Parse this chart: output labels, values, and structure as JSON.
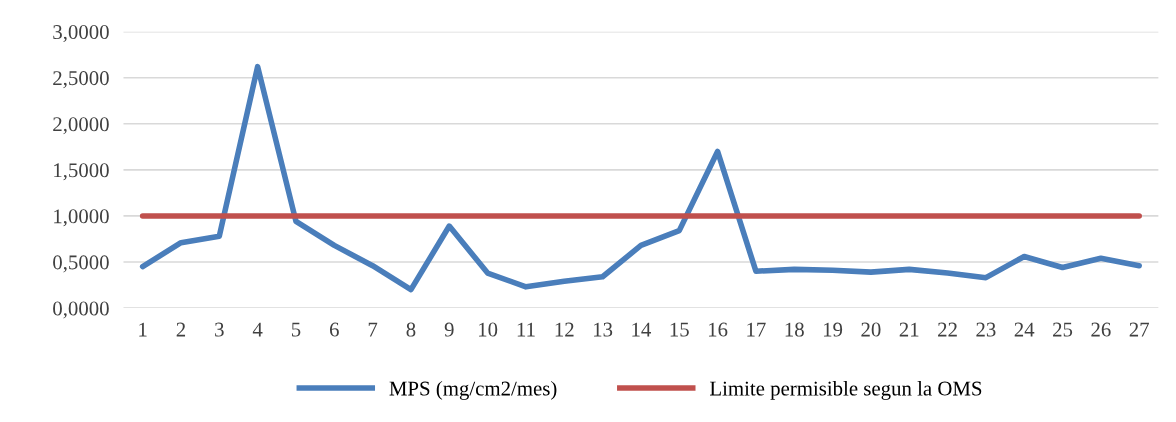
{
  "chart_data": {
    "type": "line",
    "categories": [
      "1",
      "2",
      "3",
      "4",
      "5",
      "6",
      "7",
      "8",
      "9",
      "10",
      "11",
      "12",
      "13",
      "14",
      "15",
      "16",
      "17",
      "18",
      "19",
      "20",
      "21",
      "22",
      "23",
      "24",
      "25",
      "26",
      "27"
    ],
    "series": [
      {
        "name": "MPS (mg/cm2/mes)",
        "color": "#4a7ebb",
        "values": [
          0.45,
          0.71,
          0.78,
          2.62,
          0.94,
          0.68,
          0.46,
          0.2,
          0.89,
          0.38,
          0.23,
          0.29,
          0.34,
          0.68,
          0.84,
          1.7,
          0.4,
          0.42,
          0.41,
          0.39,
          0.42,
          0.38,
          0.33,
          0.56,
          0.44,
          0.54,
          0.46
        ]
      },
      {
        "name": "Limite permisible segun la OMS",
        "color": "#c0504d",
        "values": [
          1,
          1,
          1,
          1,
          1,
          1,
          1,
          1,
          1,
          1,
          1,
          1,
          1,
          1,
          1,
          1,
          1,
          1,
          1,
          1,
          1,
          1,
          1,
          1,
          1,
          1,
          1
        ]
      }
    ],
    "ylim": [
      0,
      3
    ],
    "yticks": [
      {
        "value": 0,
        "label": "0,0000"
      },
      {
        "value": 0.5,
        "label": "0,5000"
      },
      {
        "value": 1,
        "label": "1,0000"
      },
      {
        "value": 1.5,
        "label": "1,5000"
      },
      {
        "value": 2,
        "label": "2,0000"
      },
      {
        "value": 2.5,
        "label": "2,5000"
      },
      {
        "value": 3,
        "label": "3,0000"
      }
    ],
    "grid": "y",
    "legend": "bottom",
    "marker": "none",
    "line_style": "solid"
  }
}
